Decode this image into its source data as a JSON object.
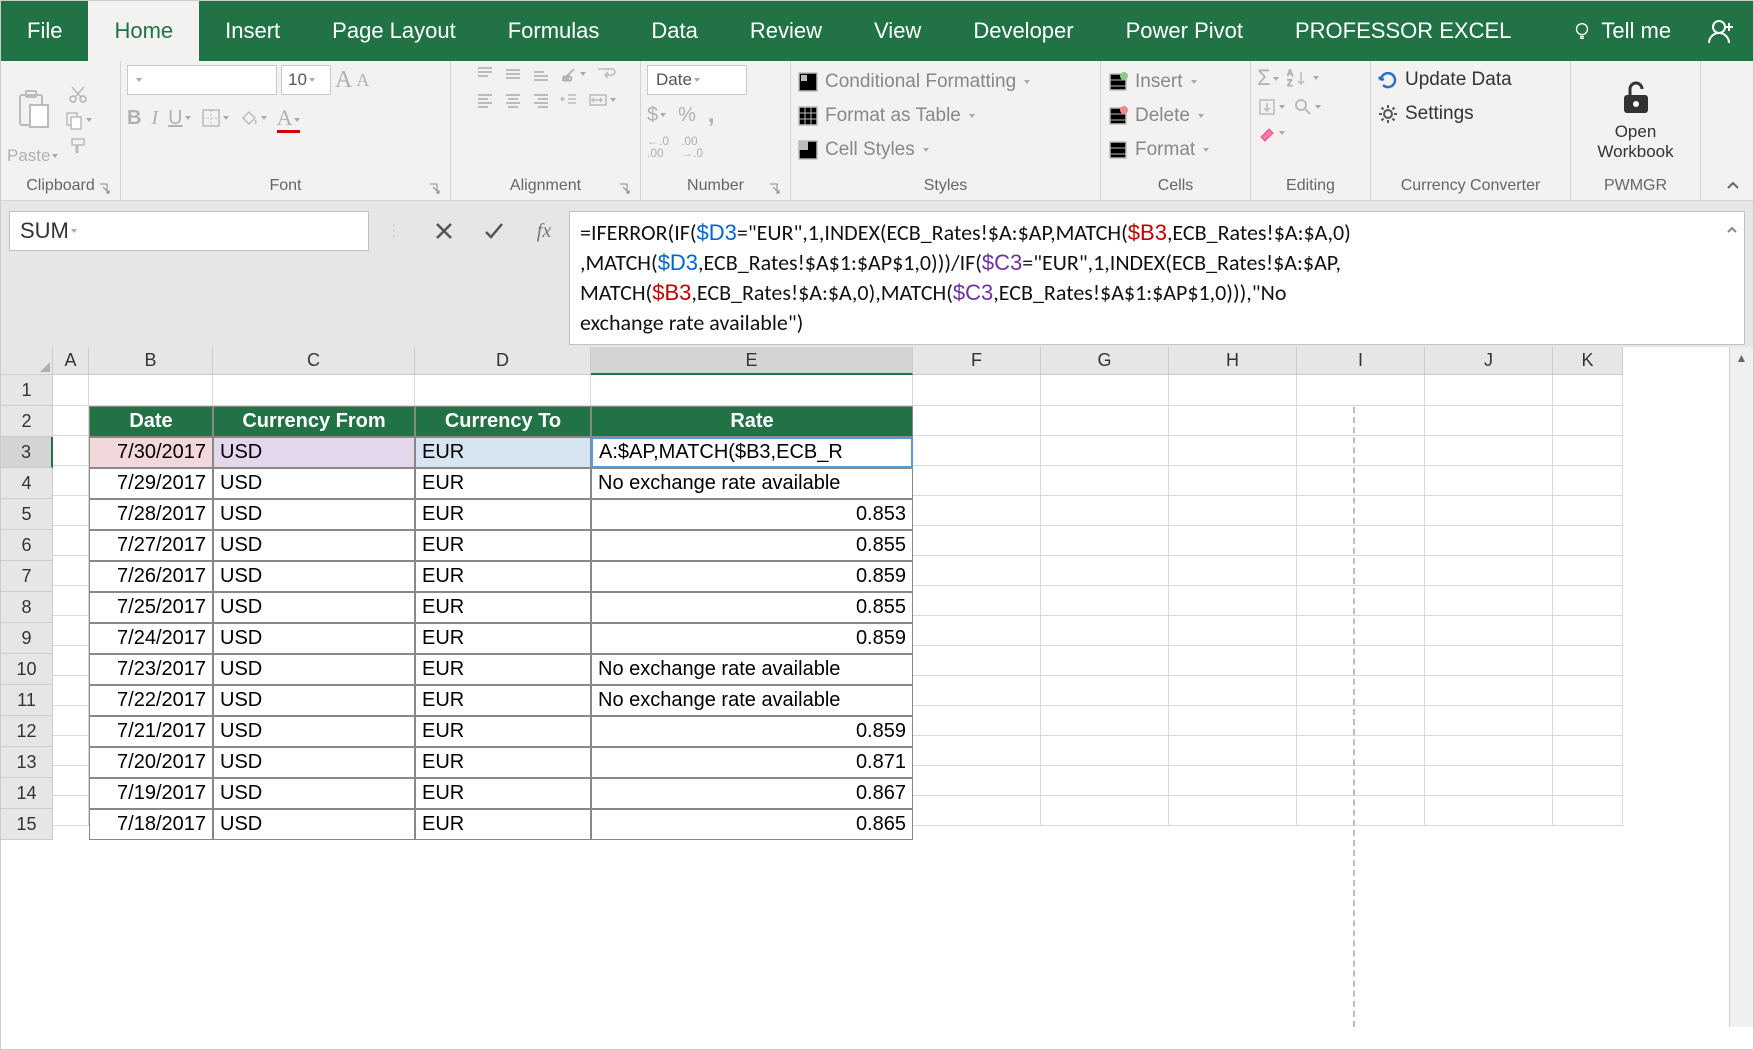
{
  "tabs": {
    "file": "File",
    "home": "Home",
    "insert": "Insert",
    "page_layout": "Page Layout",
    "formulas": "Formulas",
    "data": "Data",
    "review": "Review",
    "view": "View",
    "developer": "Developer",
    "power_pivot": "Power Pivot",
    "professor": "PROFESSOR EXCEL",
    "tell_me": "Tell me"
  },
  "ribbon": {
    "clipboard": {
      "paste": "Paste",
      "label": "Clipboard"
    },
    "font": {
      "size": "10",
      "label": "Font",
      "bold": "B",
      "italic": "I",
      "underline": "U"
    },
    "alignment": {
      "label": "Alignment"
    },
    "number": {
      "format": "Date",
      "label": "Number",
      "dollar": "$",
      "percent": "%",
      "comma": ",",
      "inc": "←.0",
      "dec": ".00",
      "inc2": ".00",
      "dec2": "→.0"
    },
    "styles": {
      "cond": "Conditional Formatting",
      "table": "Format as Table",
      "cell": "Cell Styles",
      "label": "Styles"
    },
    "cells": {
      "insert": "Insert",
      "delete": "Delete",
      "format": "Format",
      "label": "Cells"
    },
    "editing": {
      "label": "Editing"
    },
    "currency": {
      "update": "Update Data",
      "settings": "Settings",
      "label": "Currency Converter"
    },
    "pwmgr": {
      "open": "Open",
      "workbook": "Workbook",
      "label": "PWMGR"
    }
  },
  "formula_bar": {
    "name": "SUM",
    "fx": "fx",
    "line1a": "=IFERROR(IF(",
    "line1b": "=\"EUR\",1,INDEX(ECB_Rates!$A:$AP,MATCH(",
    "line1c": ",ECB_Rates!$A:$A,0)",
    "line2a": ",MATCH(",
    "line2b": ",ECB_Rates!$A$1:$AP$1,0)))/IF(",
    "line2c": "=\"EUR\",1,INDEX(ECB_Rates!$A:$AP,",
    "line3a": "MATCH(",
    "line3b": ",ECB_Rates!$A:$A,0),MATCH(",
    "line3c": ",ECB_Rates!$A$1:$AP$1,0))),\"No",
    "line4": "exchange rate available\")",
    "d3": "$D3",
    "b3": "$B3",
    "c3": "$C3"
  },
  "columns": [
    "A",
    "B",
    "C",
    "D",
    "E",
    "F",
    "G",
    "H",
    "I",
    "J",
    "K"
  ],
  "rows": [
    "1",
    "2",
    "3",
    "4",
    "5",
    "6",
    "7",
    "8",
    "9",
    "10",
    "11",
    "12",
    "13",
    "14",
    "15"
  ],
  "table": {
    "headers": {
      "date": "Date",
      "from": "Currency From",
      "to": "Currency To",
      "rate": "Rate"
    },
    "data": [
      {
        "date": "7/30/2017",
        "from": "USD",
        "to": "EUR",
        "rate": "A:$AP,MATCH($B3,ECB_R",
        "rate_align": "left",
        "edit": true
      },
      {
        "date": "7/29/2017",
        "from": "USD",
        "to": "EUR",
        "rate": "No exchange rate available",
        "rate_align": "left"
      },
      {
        "date": "7/28/2017",
        "from": "USD",
        "to": "EUR",
        "rate": "0.853",
        "rate_align": "right"
      },
      {
        "date": "7/27/2017",
        "from": "USD",
        "to": "EUR",
        "rate": "0.855",
        "rate_align": "right"
      },
      {
        "date": "7/26/2017",
        "from": "USD",
        "to": "EUR",
        "rate": "0.859",
        "rate_align": "right"
      },
      {
        "date": "7/25/2017",
        "from": "USD",
        "to": "EUR",
        "rate": "0.855",
        "rate_align": "right"
      },
      {
        "date": "7/24/2017",
        "from": "USD",
        "to": "EUR",
        "rate": "0.859",
        "rate_align": "right"
      },
      {
        "date": "7/23/2017",
        "from": "USD",
        "to": "EUR",
        "rate": "No exchange rate available",
        "rate_align": "left"
      },
      {
        "date": "7/22/2017",
        "from": "USD",
        "to": "EUR",
        "rate": "No exchange rate available",
        "rate_align": "left"
      },
      {
        "date": "7/21/2017",
        "from": "USD",
        "to": "EUR",
        "rate": "0.859",
        "rate_align": "right"
      },
      {
        "date": "7/20/2017",
        "from": "USD",
        "to": "EUR",
        "rate": "0.871",
        "rate_align": "right"
      },
      {
        "date": "7/19/2017",
        "from": "USD",
        "to": "EUR",
        "rate": "0.867",
        "rate_align": "right"
      },
      {
        "date": "7/18/2017",
        "from": "USD",
        "to": "EUR",
        "rate": "0.865",
        "rate_align": "right"
      }
    ]
  },
  "colors": {
    "brand": "#217346",
    "ref_d3": "#0066cc",
    "ref_b3": "#c00000",
    "ref_c3": "#7030a0"
  }
}
